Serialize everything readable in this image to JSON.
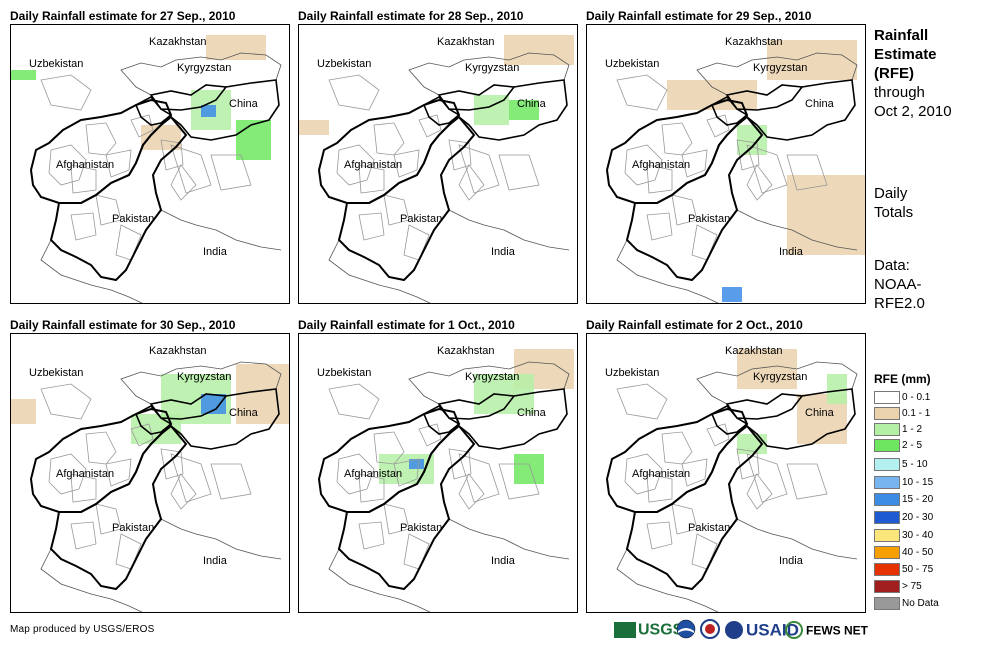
{
  "panels": [
    {
      "title": "Daily Rainfall estimate for 27 Sep., 2010"
    },
    {
      "title": "Daily Rainfall estimate for 28 Sep., 2010"
    },
    {
      "title": "Daily Rainfall estimate for 29 Sep., 2010"
    },
    {
      "title": "Daily Rainfall estimate for 30 Sep., 2010"
    },
    {
      "title": "Daily Rainfall estimate for 1 Oct., 2010"
    },
    {
      "title": "Daily Rainfall estimate for 2 Oct., 2010"
    }
  ],
  "map_labels": {
    "kazakhstan": "Kazakhstan",
    "uzbekistan": "Uzbekistan",
    "kyrgyzstan": "Kyrgyzstan",
    "china": "China",
    "afghanistan": "Afghanistan",
    "pakistan": "Pakistan",
    "india": "India"
  },
  "side": {
    "title_line1": "Rainfall",
    "title_line2": "Estimate",
    "title_line3": "(RFE)",
    "through": "through",
    "date": "Oct 2, 2010",
    "daily": "Daily",
    "totals": "Totals",
    "data_label": "Data:",
    "data_source1": "NOAA-",
    "data_source2": "RFE2.0"
  },
  "legend": {
    "title": "RFE (mm)",
    "items": [
      {
        "label": "0 - 0.1",
        "color": "#ffffff"
      },
      {
        "label": "0.1 - 1",
        "color": "#ead2ad"
      },
      {
        "label": "1 - 2",
        "color": "#b4f0a4"
      },
      {
        "label": "2 - 5",
        "color": "#6ee660"
      },
      {
        "label": "5 - 10",
        "color": "#b4f0f0"
      },
      {
        "label": "10 - 15",
        "color": "#78b4f0"
      },
      {
        "label": "15 - 20",
        "color": "#3c8ce6"
      },
      {
        "label": "20 - 30",
        "color": "#1e5ad2"
      },
      {
        "label": "30 - 40",
        "color": "#fae67a"
      },
      {
        "label": "40 - 50",
        "color": "#f5a000"
      },
      {
        "label": "50 - 75",
        "color": "#e63200"
      },
      {
        "label": "> 75",
        "color": "#a01e1e"
      },
      {
        "label": "No Data",
        "color": "#999999"
      }
    ]
  },
  "footer": {
    "credit": "Map produced by USGS/EROS"
  },
  "logos": {
    "usgs": "USGS",
    "usaid": "USAID",
    "fewsnet": "FEWS NET"
  }
}
